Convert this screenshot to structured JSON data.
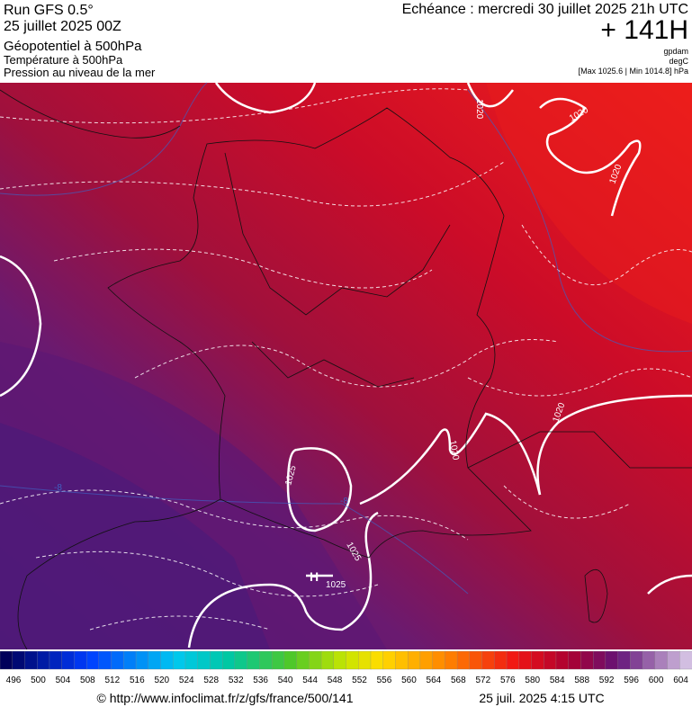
{
  "header": {
    "run": "Run GFS 0.5°",
    "date": "25 juillet 2025 00Z",
    "field1": "Géopotentiel à 500hPa",
    "field2": "Température à 500hPa",
    "field3": "Pression au niveau de la mer",
    "echeance": "Echéance : mercredi 30 juillet 2025 21h UTC",
    "hour": "+ 141H",
    "unit1": "gpdam",
    "unit2": "degC",
    "pressure_range": "[Max 1025.6 | Min 1014.8] hPa"
  },
  "map_labels": [
    "1020",
    "1020",
    "1020",
    "1020",
    "1020",
    "1025",
    "1025",
    "1025",
    "-8",
    "-8",
    "H"
  ],
  "colorbar": {
    "labels": [
      496,
      500,
      504,
      508,
      512,
      516,
      520,
      524,
      528,
      532,
      536,
      540,
      544,
      548,
      552,
      556,
      560,
      564,
      568,
      572,
      576,
      580,
      584,
      588,
      592,
      596,
      600,
      604
    ]
  },
  "footer": {
    "source": "© http://www.infoclimat.fr/z/gfs/france/500/141",
    "timestamp": "25 juil. 2025  4:15 UTC"
  }
}
